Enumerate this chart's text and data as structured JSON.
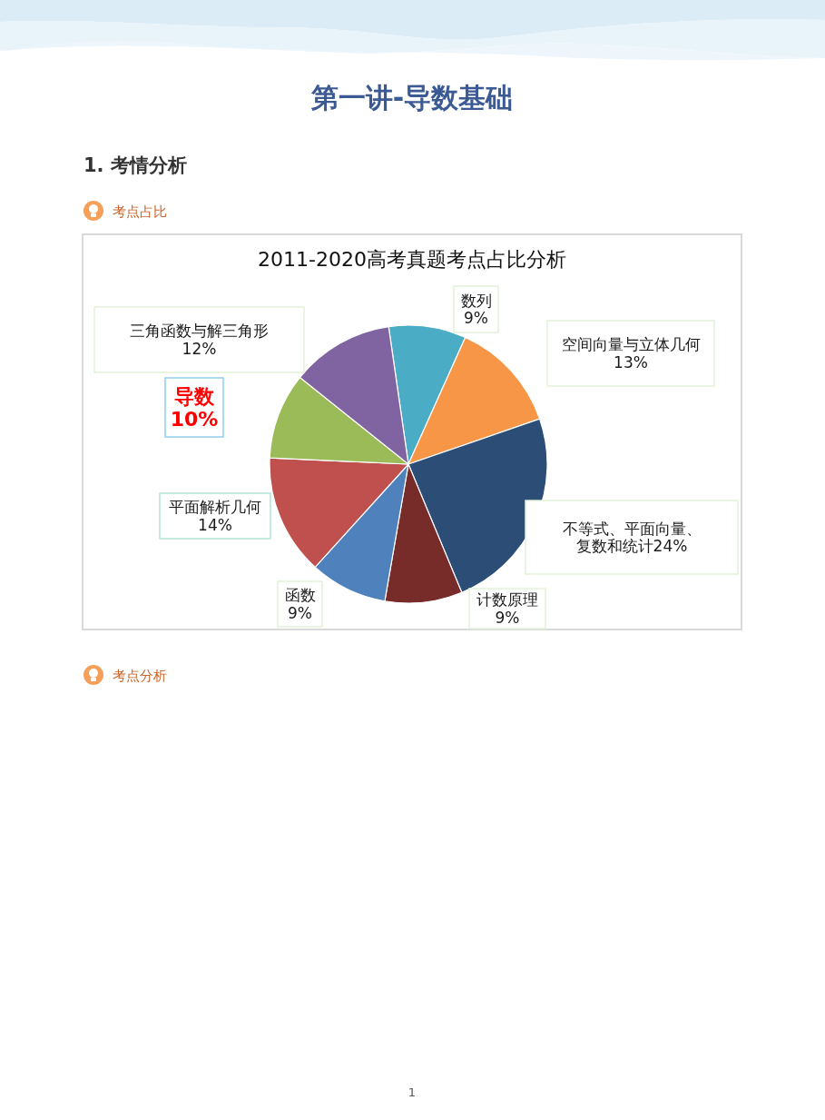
{
  "chart_data": {
    "type": "pie",
    "title": "2011-2020高考真题考点占比分析",
    "categories": [
      "数列",
      "空间向量与立体几何",
      "不等式、平面向量、复数和统计",
      "计数原理",
      "函数",
      "平面解析几何",
      "导数",
      "三角函数与解三角形"
    ],
    "values": [
      9,
      13,
      24,
      9,
      9,
      14,
      10,
      12
    ],
    "colors": [
      "#4bacc6",
      "#f79646",
      "#2c4d75",
      "#772c2a",
      "#4f81bd",
      "#c0504d",
      "#9bbb59",
      "#8064a2"
    ],
    "value_labels": [
      "9%",
      "13%",
      "24%",
      "9%",
      "9%",
      "14%",
      "10%",
      "12%"
    ],
    "annotations": [
      "第一讲-导数基础",
      "1. 考情分析",
      "考点占比",
      "考点分析",
      "1"
    ]
  }
}
